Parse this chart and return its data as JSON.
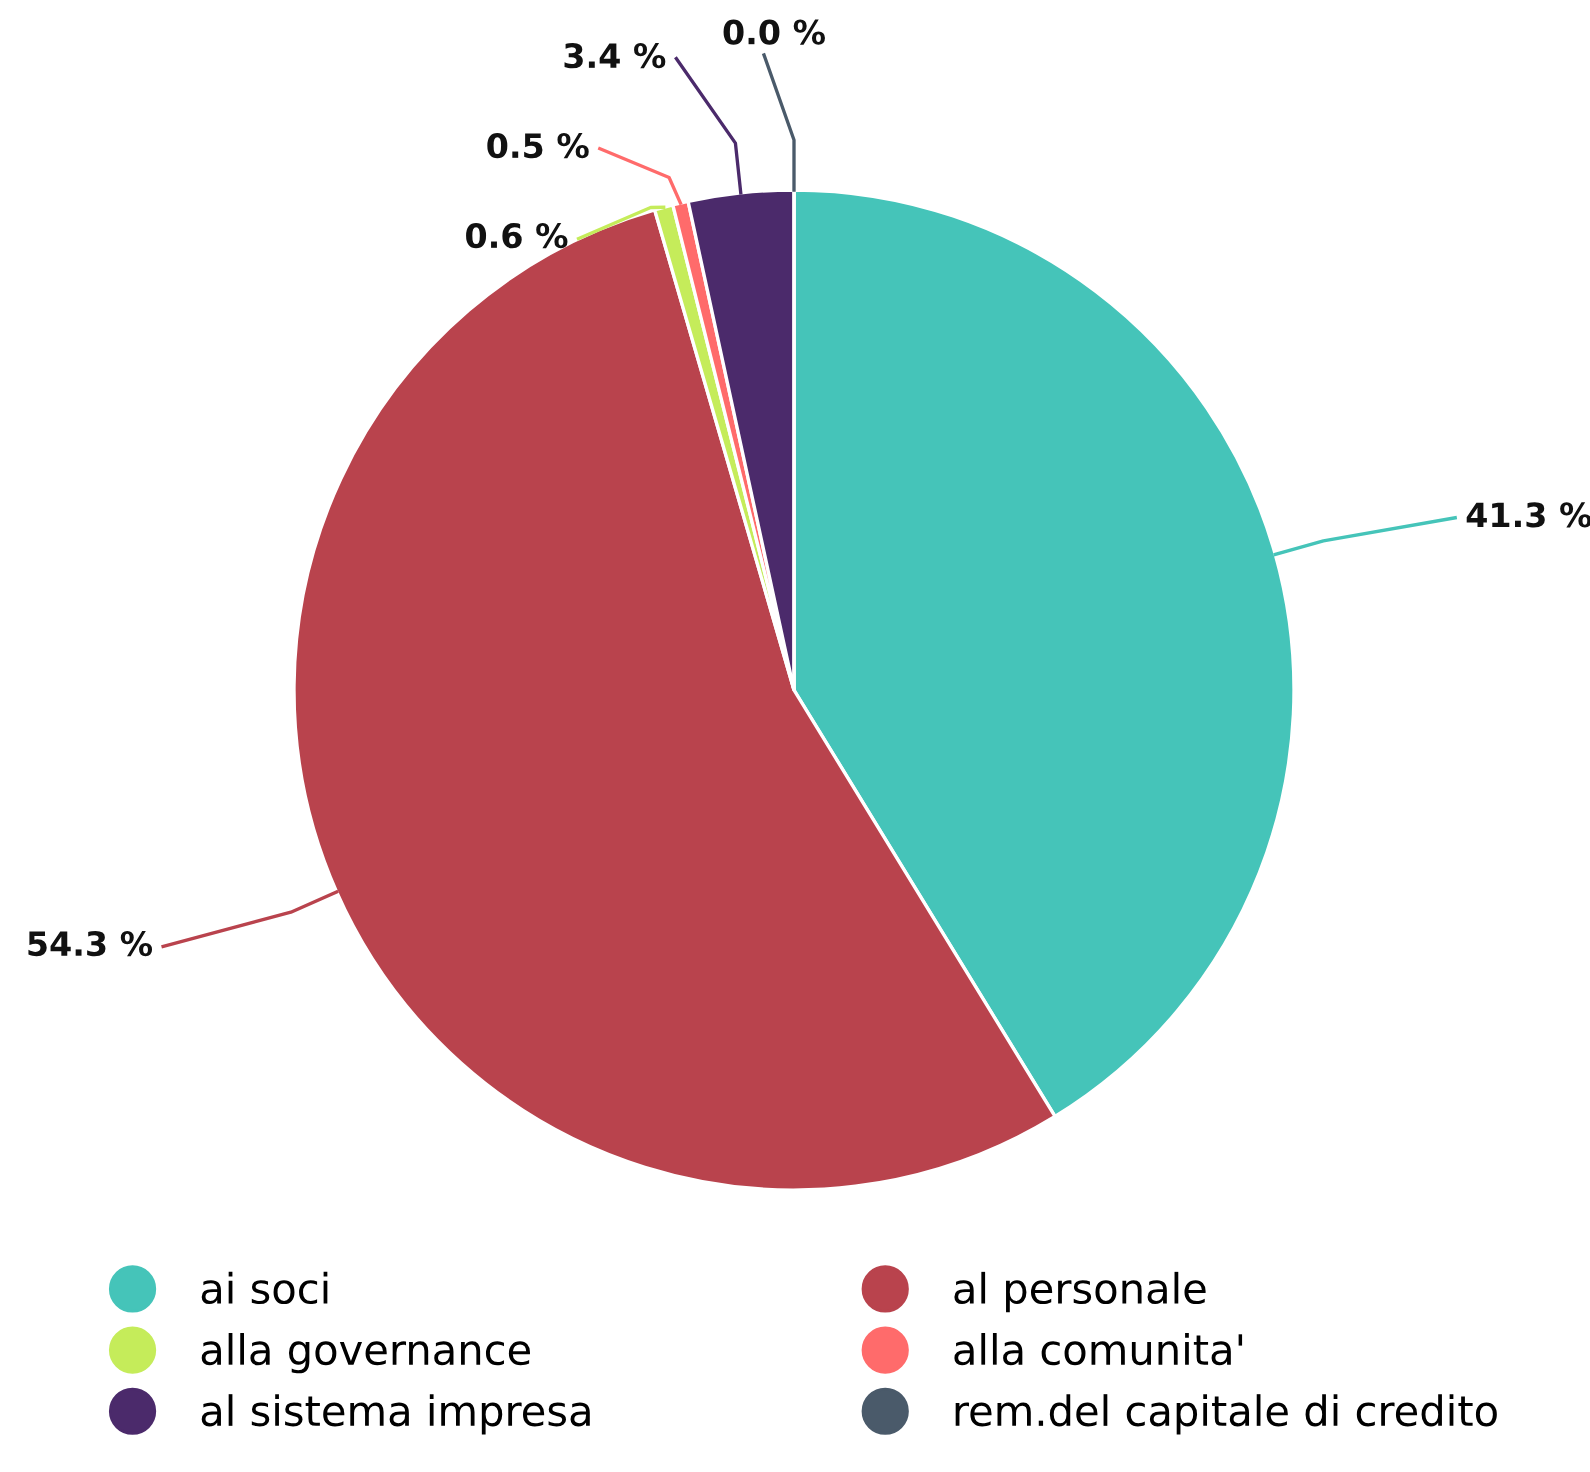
{
  "chart_data": {
    "type": "pie",
    "categories": [
      "ai soci",
      "al personale",
      "alla governance",
      "alla comunita'",
      "al sistema impresa",
      "rem.del capitale di credito"
    ],
    "values": [
      41.3,
      54.3,
      0.6,
      0.5,
      3.4,
      0.0
    ],
    "colors": [
      "#45c4b9",
      "#b9434d",
      "#c5ec5a",
      "#ff6b6b",
      "#4b2a6b",
      "#4a5a6a"
    ],
    "value_labels": [
      "41.3 %",
      "54.3 %",
      "0.6 %",
      "0.5 %",
      "3.4 %",
      "0.0 %"
    ],
    "legend": "bottom"
  }
}
